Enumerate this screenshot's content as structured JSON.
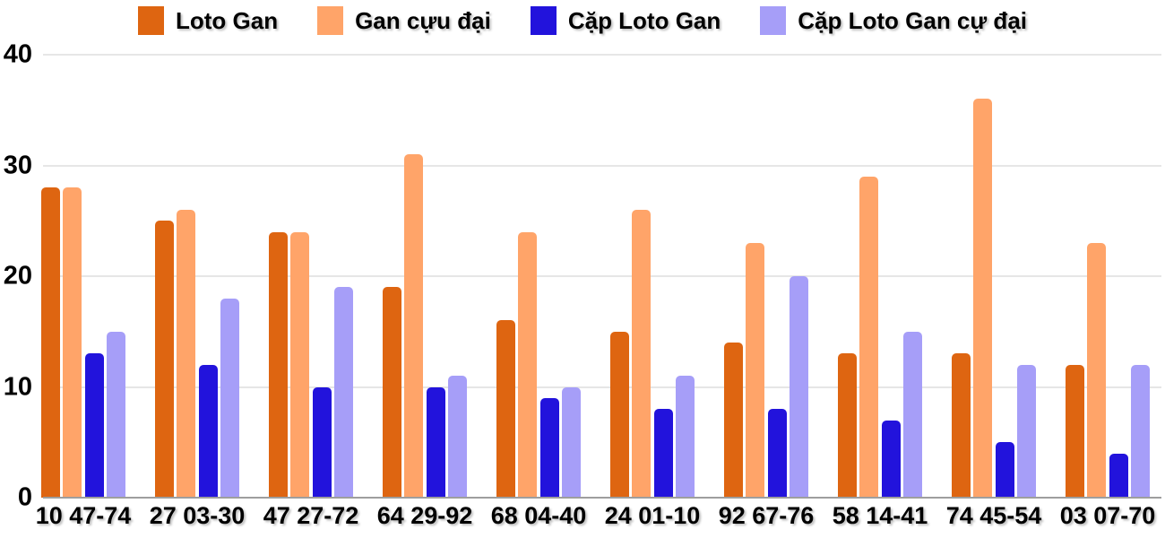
{
  "chart_data": {
    "type": "bar",
    "title": "",
    "xlabel": "",
    "ylabel": "",
    "ylim": [
      0,
      40
    ],
    "y_ticks": [
      0,
      10,
      20,
      30,
      40
    ],
    "grid": true,
    "legend_position": "top",
    "categories": [
      "10 47-74",
      "27 03-30",
      "47 27-72",
      "64 29-92",
      "68 04-40",
      "24 01-10",
      "92 67-76",
      "58 14-41",
      "74 45-54",
      "03 07-70"
    ],
    "series": [
      {
        "name": "Loto Gan",
        "color": "#de6511",
        "values": [
          28,
          25,
          24,
          19,
          16,
          15,
          14,
          13,
          13,
          12
        ]
      },
      {
        "name": "Gan cựu đại",
        "color": "#ffa469",
        "values": [
          28,
          26,
          24,
          31,
          24,
          26,
          23,
          29,
          36,
          23
        ]
      },
      {
        "name": "Cặp Loto Gan",
        "color": "#2213dc",
        "values": [
          13,
          12,
          10,
          10,
          9,
          8,
          8,
          7,
          5,
          4
        ]
      },
      {
        "name": "Cặp Loto Gan cự đại",
        "color": "#a69ef8",
        "values": [
          15,
          18,
          19,
          11,
          10,
          11,
          20,
          15,
          12,
          12
        ]
      }
    ]
  },
  "colors": {
    "background": "#ffffff",
    "gridline": "#e6e6e6",
    "baseline": "#9e9e9e",
    "axis_text": "#000000"
  }
}
